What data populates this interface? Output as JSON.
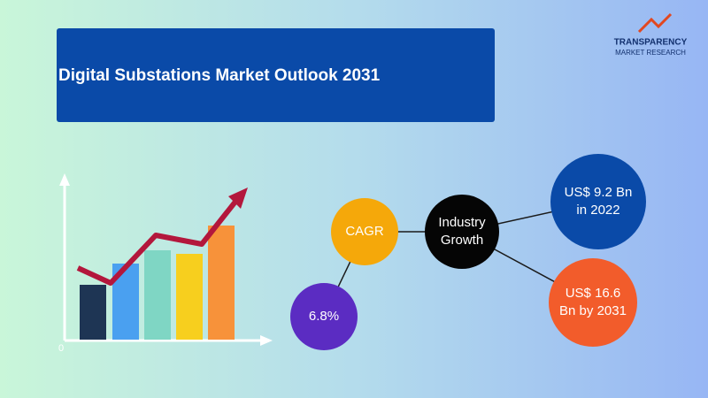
{
  "header": {
    "title": "Digital Substations Market Outlook 2031"
  },
  "logo": {
    "line1": "TRANSPARENCY",
    "line2": "MARKET RESEARCH"
  },
  "illustration": {
    "axis_origin": "0"
  },
  "nodes": [
    {
      "label_lines": [
        "CAGR"
      ]
    },
    {
      "label_lines": [
        "6.8%"
      ]
    },
    {
      "label_lines": [
        "Industry",
        "Growth"
      ]
    },
    {
      "label_lines": [
        "US$ 9.2 Bn",
        "in 2022"
      ]
    },
    {
      "label_lines": [
        "US$ 16.6",
        "Bn by 2031"
      ]
    }
  ]
}
